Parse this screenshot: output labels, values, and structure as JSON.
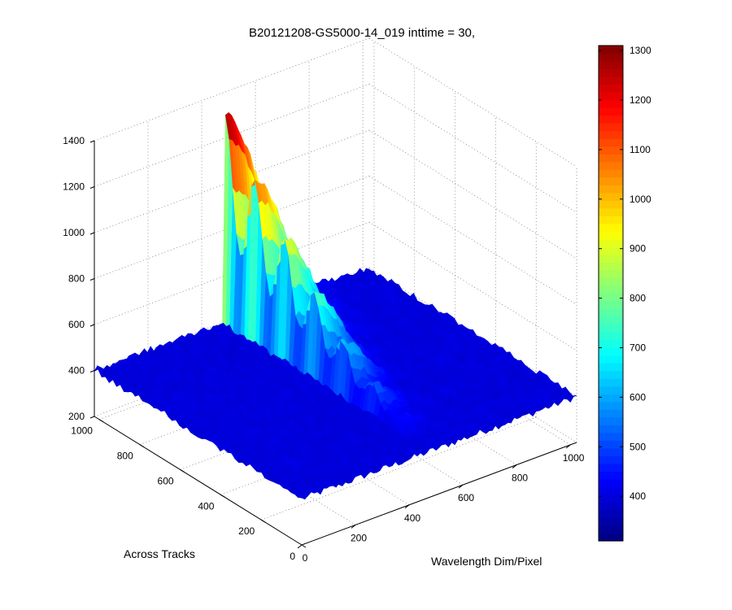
{
  "chart_data": {
    "type": "surface",
    "title": "B20121208-GS5000-14_019 inttime = 30,",
    "xlabel": "Wavelength Dim/Pixel",
    "ylabel": "Across Tracks",
    "zlabel": "",
    "x_ticks": [
      "0",
      "200",
      "400",
      "600",
      "800",
      "1000"
    ],
    "y_ticks": [
      "0",
      "200",
      "400",
      "600",
      "800",
      "1000"
    ],
    "z_ticks": [
      "200",
      "400",
      "600",
      "800",
      "1000",
      "1200",
      "1400"
    ],
    "xlim": [
      0,
      1024
    ],
    "ylim": [
      0,
      1024
    ],
    "zlim": [
      200,
      1400
    ],
    "grid": true,
    "colormap": "jet",
    "colorbar": {
      "range": [
        310,
        1310
      ],
      "ticks": [
        "400",
        "500",
        "600",
        "700",
        "800",
        "900",
        "1000",
        "1100",
        "1200",
        "1300"
      ]
    },
    "surface": {
      "baseline": 400,
      "peak_value": 1300,
      "peak_x": 480,
      "peak_y": 1024,
      "peak_width_x": 260,
      "fringe_count": 7,
      "noise_amplitude": 30
    }
  }
}
